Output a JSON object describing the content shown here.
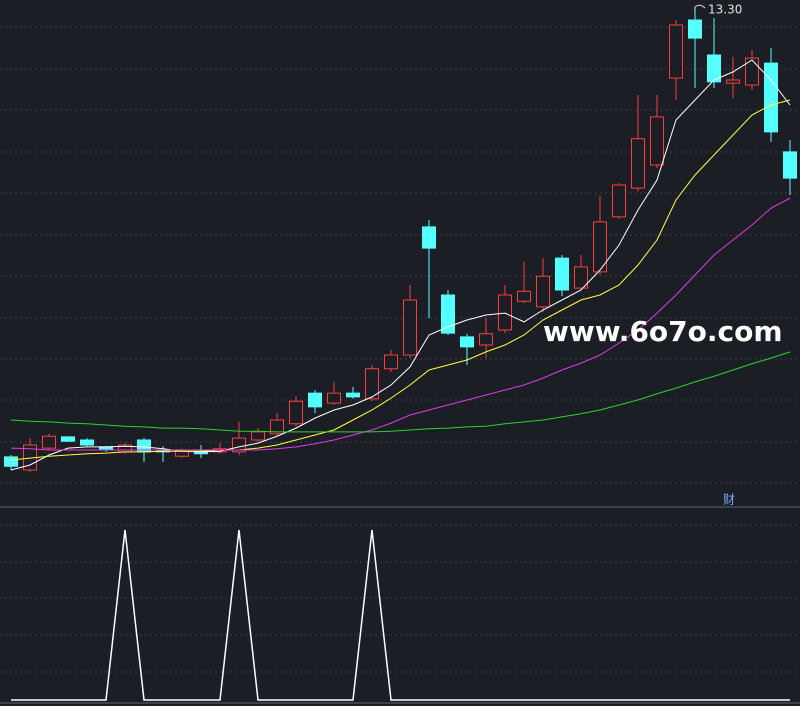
{
  "chart_data": [
    {
      "type": "candlestick",
      "open": [
        6.12,
        5.91,
        6.26,
        6.44,
        6.39,
        6.28,
        6.2,
        6.39,
        6.23,
        6.13,
        6.21,
        6.2,
        6.2,
        6.39,
        6.49,
        6.65,
        7.14,
        6.98,
        7.14,
        7.05,
        7.53,
        7.75,
        9.8,
        8.71,
        8.04,
        7.91,
        8.15,
        8.61,
        8.52,
        9.3,
        8.82,
        9.08,
        9.96,
        10.42,
        10.79,
        12.18,
        13.11,
        12.55,
        12.1,
        12.07,
        12.42,
        11.0
      ],
      "high": [
        6.15,
        6.42,
        6.49,
        6.45,
        6.42,
        6.29,
        6.34,
        6.42,
        6.29,
        6.25,
        6.31,
        6.34,
        6.68,
        6.58,
        6.82,
        7.09,
        7.19,
        7.32,
        7.24,
        7.59,
        7.83,
        8.87,
        9.91,
        8.79,
        8.09,
        8.34,
        8.87,
        9.24,
        9.3,
        9.35,
        9.35,
        10.29,
        10.5,
        11.91,
        11.91,
        13.11,
        13.3,
        13.14,
        12.52,
        12.63,
        12.66,
        11.19
      ],
      "low": [
        5.91,
        5.88,
        6.23,
        6.36,
        6.29,
        6.2,
        6.17,
        6.04,
        6.04,
        6.1,
        6.1,
        6.17,
        6.15,
        6.36,
        6.45,
        6.61,
        6.82,
        6.95,
        7.05,
        7.01,
        7.48,
        7.7,
        8.34,
        8.07,
        7.59,
        7.7,
        8.1,
        8.58,
        8.44,
        8.69,
        8.79,
        9.03,
        9.93,
        10.37,
        10.74,
        11.83,
        12.02,
        12.02,
        11.86,
        11.99,
        11.16,
        10.31
      ],
      "close": [
        5.97,
        6.31,
        6.45,
        6.37,
        6.31,
        6.23,
        6.31,
        6.2,
        6.2,
        6.23,
        6.17,
        6.25,
        6.42,
        6.52,
        6.71,
        7.01,
        6.92,
        7.14,
        7.08,
        7.53,
        7.75,
        8.63,
        9.46,
        8.1,
        7.88,
        8.09,
        8.71,
        8.77,
        9.01,
        8.79,
        9.16,
        9.88,
        10.47,
        11.21,
        11.56,
        13.03,
        12.82,
        12.12,
        12.15,
        12.5,
        11.32,
        10.58
      ],
      "up_color": "#ff3c3c",
      "down_color": "#54ffff",
      "series": [
        {
          "color": "#ffffff",
          "values": [
            5.91,
            5.99,
            6.15,
            6.26,
            6.28,
            6.28,
            6.29,
            6.28,
            6.25,
            6.21,
            6.2,
            6.21,
            6.28,
            6.34,
            6.45,
            6.58,
            6.74,
            6.87,
            6.95,
            7.08,
            7.27,
            7.56,
            8.07,
            8.2,
            8.31,
            8.39,
            8.42,
            8.28,
            8.47,
            8.63,
            8.79,
            9.11,
            9.51,
            10.07,
            10.55,
            11.51,
            11.83,
            12.15,
            12.28,
            12.47,
            12.15,
            11.75
          ]
        },
        {
          "color": "#ffff3c",
          "values": [
            6.07,
            6.1,
            6.13,
            6.15,
            6.17,
            6.18,
            6.2,
            6.2,
            6.21,
            6.21,
            6.21,
            6.23,
            6.23,
            6.26,
            6.31,
            6.39,
            6.47,
            6.55,
            6.71,
            6.87,
            7.06,
            7.27,
            7.51,
            7.59,
            7.67,
            7.8,
            7.91,
            8.07,
            8.31,
            8.47,
            8.63,
            8.71,
            8.87,
            9.19,
            9.59,
            10.23,
            10.63,
            10.95,
            11.27,
            11.59,
            11.75,
            11.83
          ]
        },
        {
          "color": "#e03ce0",
          "values": [
            6.26,
            6.25,
            6.23,
            6.23,
            6.23,
            6.23,
            6.23,
            6.23,
            6.23,
            6.23,
            6.23,
            6.23,
            6.23,
            6.23,
            6.25,
            6.28,
            6.33,
            6.39,
            6.47,
            6.55,
            6.66,
            6.79,
            6.87,
            6.95,
            7.03,
            7.11,
            7.19,
            7.27,
            7.38,
            7.51,
            7.62,
            7.75,
            7.94,
            8.15,
            8.42,
            8.71,
            9.03,
            9.35,
            9.59,
            9.83,
            10.1,
            10.26
          ]
        },
        {
          "color": "#2ed12e",
          "values": [
            6.71,
            6.69,
            6.68,
            6.66,
            6.65,
            6.63,
            6.61,
            6.6,
            6.58,
            6.58,
            6.57,
            6.55,
            6.53,
            6.53,
            6.52,
            6.52,
            6.52,
            6.52,
            6.52,
            6.52,
            6.53,
            6.55,
            6.57,
            6.58,
            6.6,
            6.61,
            6.65,
            6.68,
            6.71,
            6.76,
            6.81,
            6.87,
            6.95,
            7.03,
            7.13,
            7.22,
            7.32,
            7.41,
            7.51,
            7.61,
            7.7,
            7.8
          ]
        }
      ],
      "ylim": [
        5.35,
        13.43
      ],
      "high_label": "13.30",
      "note": "财",
      "watermark": "www.6o7o.com"
    },
    {
      "type": "line",
      "values": [
        0,
        0,
        0,
        0,
        0,
        0,
        1,
        0,
        0,
        0,
        0,
        0,
        1,
        0,
        0,
        0,
        0,
        0,
        0,
        1,
        0,
        0,
        0,
        0,
        0,
        0,
        0,
        0,
        0,
        0,
        0,
        0,
        0,
        0,
        0,
        0,
        0,
        0,
        0,
        0,
        0,
        0
      ],
      "color": "#ffffff",
      "ylim": [
        0,
        1
      ]
    }
  ]
}
